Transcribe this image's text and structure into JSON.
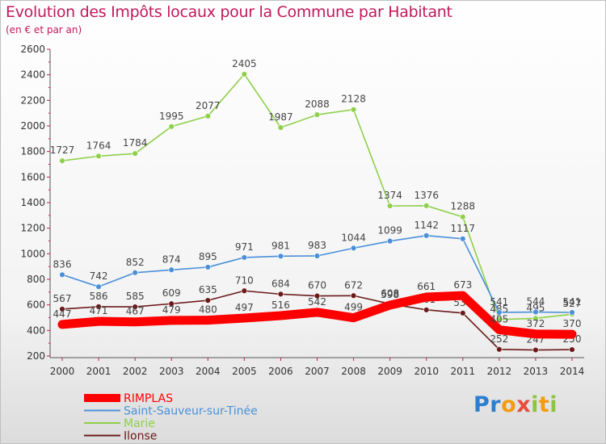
{
  "title": "Evolution des Impôts locaux pour la Commune par Habitant",
  "subtitle": "(en € et par an)",
  "logo": {
    "letters": [
      "P",
      "r",
      "o",
      "x",
      "i",
      "t",
      "i"
    ]
  },
  "chart_data": {
    "type": "line",
    "title": "Evolution des Impôts locaux pour la Commune par Habitant",
    "subtitle": "(en € et par an)",
    "xlabel": "",
    "ylabel": "",
    "grid": false,
    "ylim": [
      200,
      2600
    ],
    "yticks": [
      200,
      400,
      600,
      800,
      1000,
      1200,
      1400,
      1600,
      1800,
      2000,
      2200,
      2400,
      2600
    ],
    "x": [
      "2000",
      "2001",
      "2002",
      "2003",
      "2004",
      "2005",
      "2006",
      "2007",
      "2008",
      "2009",
      "2010",
      "2011",
      "2012",
      "2013",
      "2014"
    ],
    "series": [
      {
        "name": "RIMPLAS",
        "color": "#ff0000",
        "values": [
          447,
          471,
          467,
          479,
          480,
          497,
          516,
          542,
          499,
          598,
          661,
          673,
          405,
          372,
          370
        ]
      },
      {
        "name": "Saint-Sauveur-sur-Tinée",
        "color": "#4a90d9",
        "values": [
          836,
          742,
          852,
          874,
          895,
          971,
          981,
          983,
          1044,
          1099,
          1142,
          1117,
          541,
          544,
          541
        ]
      },
      {
        "name": "Marie",
        "color": "#8ed04a",
        "values": [
          1727,
          1764,
          1784,
          1995,
          2077,
          2405,
          1987,
          2088,
          2128,
          1374,
          1376,
          1288,
          485,
          495,
          527
        ]
      },
      {
        "name": "Ilonse",
        "color": "#6b1a1a",
        "values": [
          567,
          586,
          585,
          609,
          635,
          710,
          684,
          670,
          672,
          608,
          561,
          536,
          252,
          247,
          250
        ]
      }
    ],
    "legend_position": "bottom-left"
  }
}
